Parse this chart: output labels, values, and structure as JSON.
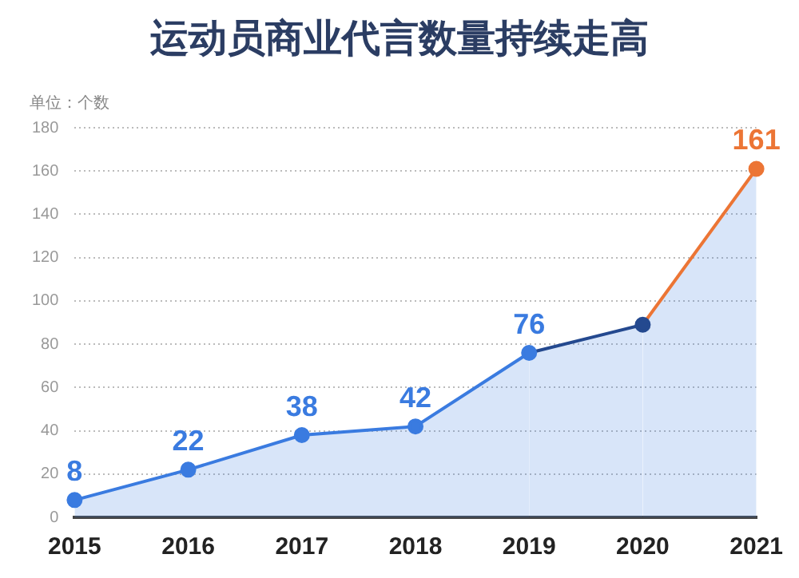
{
  "chart_data": {
    "type": "area",
    "title": "运动员商业代言数量持续走高",
    "ylabel": "单位：个数",
    "categories": [
      "2015",
      "2016",
      "2017",
      "2018",
      "2019",
      "2020",
      "2021"
    ],
    "series": [
      {
        "color": "#3a7be0",
        "colors": [
          "#3a7be0",
          "#3a7be0",
          "#3a7be0",
          "#3a7be0",
          "#3a7be0",
          "#24498f",
          "#ec7535"
        ],
        "values": [
          8,
          22,
          38,
          42,
          76,
          89,
          161
        ],
        "value_labels": [
          "8",
          "22",
          "38",
          "42",
          "76",
          null,
          "161"
        ]
      }
    ],
    "ylim": [
      0,
      180
    ],
    "yticks": [
      0,
      20,
      40,
      60,
      80,
      100,
      120,
      140,
      160,
      180
    ],
    "grid": "y",
    "marker": "circle",
    "legend": false
  }
}
